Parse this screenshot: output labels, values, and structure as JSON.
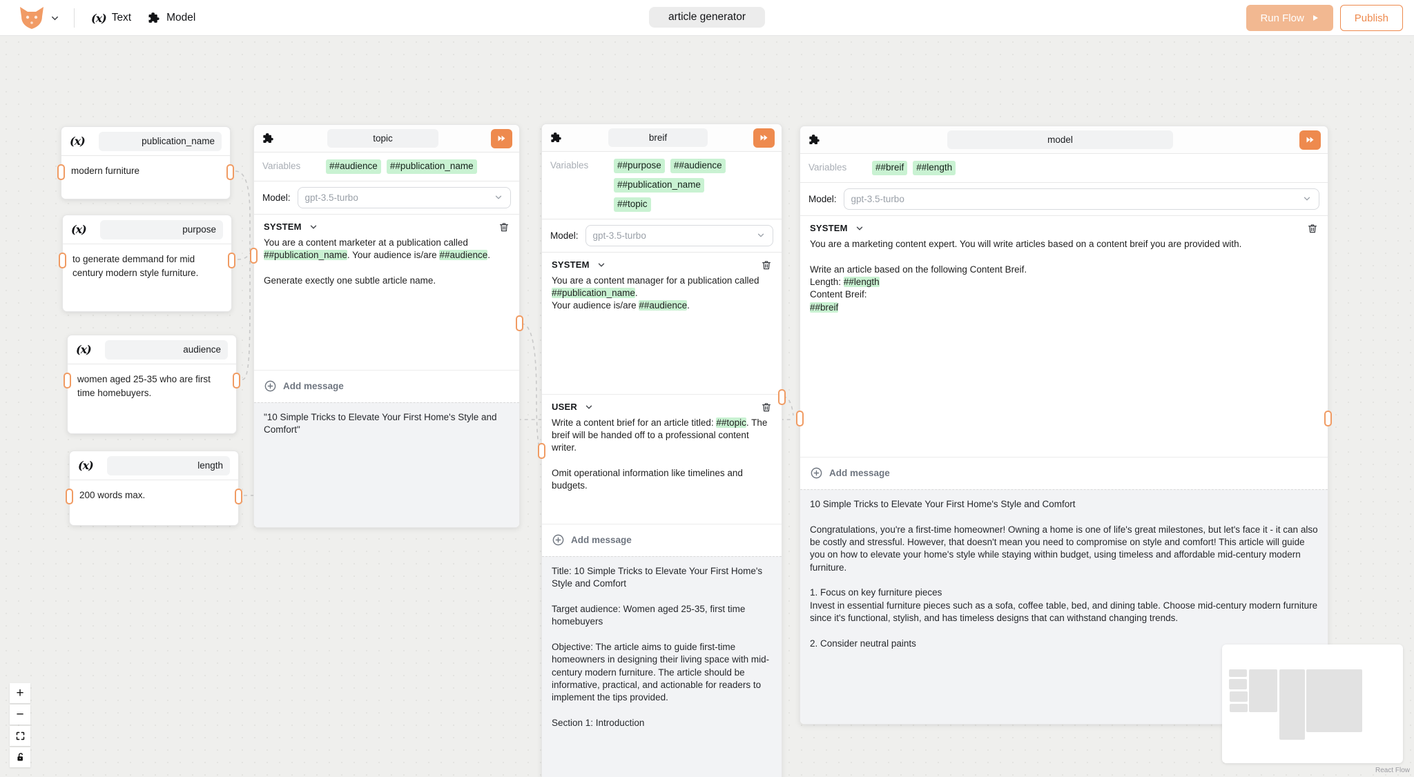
{
  "topbar": {
    "title_value": "article generator",
    "text_tool_label": "Text",
    "text_tool_icon": "(x)",
    "model_tool_label": "Model",
    "run_flow_label": "Run Flow",
    "publish_label": "Publish"
  },
  "labels": {
    "variables": "Variables",
    "model": "Model:",
    "add_message": "Add message"
  },
  "controls": {
    "zoom_in": "+",
    "zoom_out": "−"
  },
  "canvas": {
    "attribution": "React Flow"
  },
  "colors": {
    "accent_orange": "#EE8A4E",
    "run_flow_bg": "#F2B891",
    "handle_orange": "#F09B63",
    "variable_green": "#C9F2D2"
  },
  "text_nodes": [
    {
      "name": "publication_name",
      "value": "modern furniture"
    },
    {
      "name": "purpose",
      "value": "to generate demmand for mid century modern style furniture."
    },
    {
      "name": "audience",
      "value": "women aged 25-35 who are first time homebuyers."
    },
    {
      "name": "length",
      "value": "200 words max."
    }
  ],
  "prompt_nodes": [
    {
      "name": "topic",
      "variables": [
        "##audience",
        "##publication_name"
      ],
      "model_value": "gpt-3.5-turbo",
      "messages": [
        {
          "role": "SYSTEM",
          "segments": [
            {
              "t": "You are a content marketer at a publication called "
            },
            {
              "t": "##publication_name",
              "hl": true
            },
            {
              "t": ". Your audience is/are "
            },
            {
              "t": "##audience",
              "hl": true
            },
            {
              "t": ".\n\nGenerate exectly one subtle article name."
            }
          ]
        }
      ],
      "output": "\"10 Simple Tricks to Elevate Your First Home's Style and Comfort\""
    },
    {
      "name": "breif",
      "variables": [
        "##purpose",
        "##audience",
        "##publication_name",
        "##topic"
      ],
      "model_value": "gpt-3.5-turbo",
      "messages": [
        {
          "role": "SYSTEM",
          "segments": [
            {
              "t": "You are a content manager for a publication called "
            },
            {
              "t": "##publication_name",
              "hl": true
            },
            {
              "t": ".\nYour audience is/are "
            },
            {
              "t": "##audience",
              "hl": true
            },
            {
              "t": "."
            }
          ]
        },
        {
          "role": "USER",
          "segments": [
            {
              "t": "Write a content brief for an article titled: "
            },
            {
              "t": "##topic",
              "hl": true
            },
            {
              "t": ". The breif will be handed off to a professional content writer.\n\nOmit operational information like timelines and budgets."
            }
          ]
        }
      ],
      "output": "Title: 10 Simple Tricks to Elevate Your First Home's Style and Comfort\n\nTarget audience: Women aged 25-35, first time homebuyers\n\nObjective: The article aims to guide first-time homeowners in designing their living space with mid-century modern furniture. The article should be informative, practical, and actionable for readers to implement the tips provided.\n\nSection 1: Introduction"
    },
    {
      "name": "model",
      "variables": [
        "##breif",
        "##length"
      ],
      "model_value": "gpt-3.5-turbo",
      "messages": [
        {
          "role": "SYSTEM",
          "segments": [
            {
              "t": "You are a marketing content expert. You will write articles based on a content breif you are provided with.\n\nWrite an article based on the following Content Breif.\nLength: "
            },
            {
              "t": "##length",
              "hl": true
            },
            {
              "t": "\nContent Breif:\n"
            },
            {
              "t": "##breif",
              "hl": true
            }
          ]
        }
      ],
      "output": "10 Simple Tricks to Elevate Your First Home's Style and Comfort\n\nCongratulations, you're a first-time homeowner! Owning a home is one of life's great milestones, but let's face it - it can also be costly and stressful. However, that doesn't mean you need to compromise on style and comfort! This article will guide you on how to elevate your home's style while staying within budget, using timeless and affordable mid-century modern furniture.\n\n1. Focus on key furniture pieces\nInvest in essential furniture pieces such as a sofa, coffee table, bed, and dining table. Choose mid-century modern furniture since it's functional, stylish, and has timeless designs that can withstand changing trends.\n\n2. Consider neutral paints"
    }
  ]
}
